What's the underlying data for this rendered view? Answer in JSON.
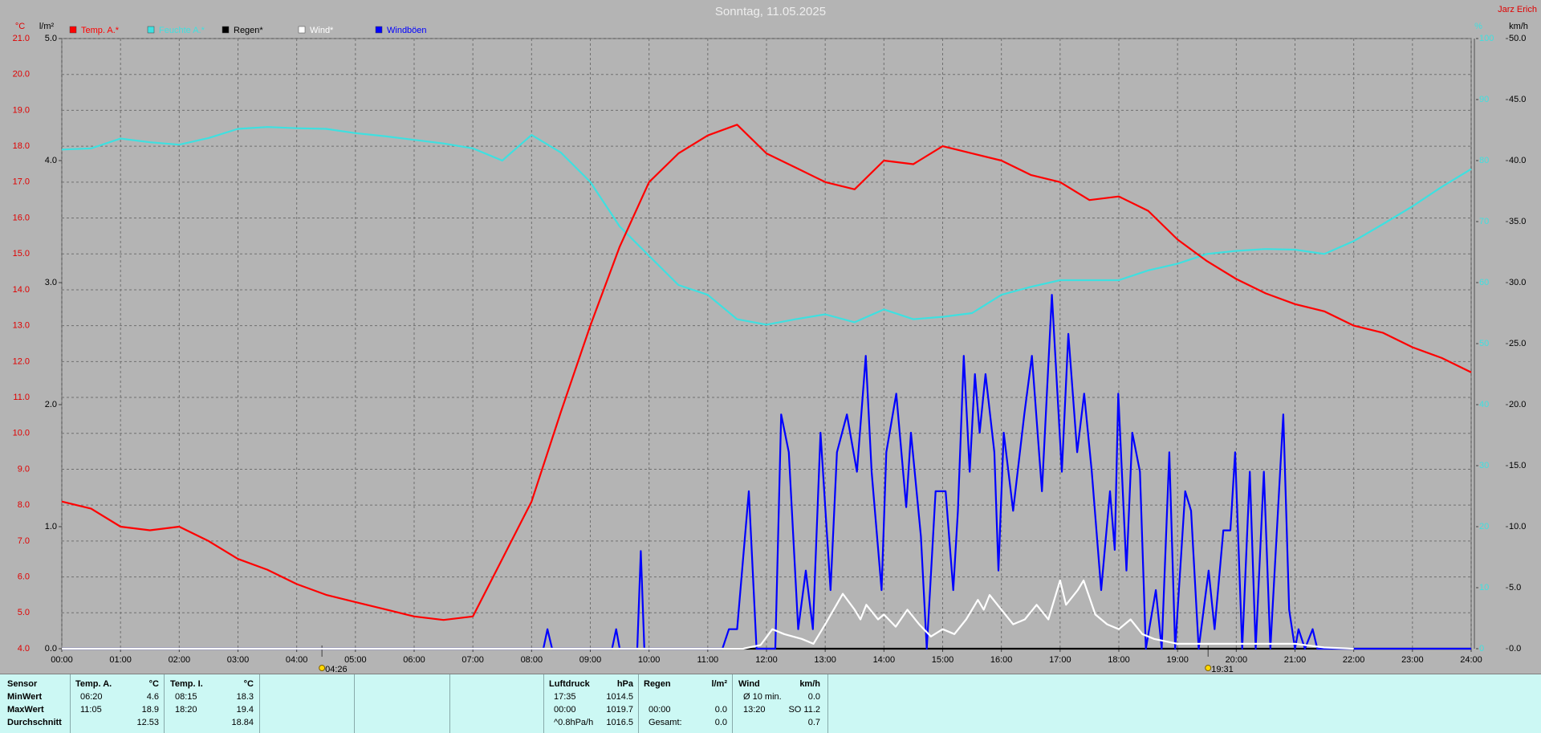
{
  "header": {
    "title": "Sonntag, 11.05.2025",
    "station": "Jarz Erich"
  },
  "chart_data": {
    "type": "line",
    "grid": true,
    "xlim": [
      0,
      24
    ],
    "xticks": [
      {
        "value": 0,
        "label": "00:00"
      },
      {
        "value": 1,
        "label": "01:00"
      },
      {
        "value": 2,
        "label": "02:00"
      },
      {
        "value": 3,
        "label": "03:00"
      },
      {
        "value": 4,
        "label": "04:00"
      },
      {
        "value": 5,
        "label": "05:00"
      },
      {
        "value": 6,
        "label": "06:00"
      },
      {
        "value": 7,
        "label": "07:00"
      },
      {
        "value": 8,
        "label": "08:00"
      },
      {
        "value": 9,
        "label": "09:00"
      },
      {
        "value": 10,
        "label": "10:00"
      },
      {
        "value": 11,
        "label": "11:00"
      },
      {
        "value": 12,
        "label": "12:00"
      },
      {
        "value": 13,
        "label": "13:00"
      },
      {
        "value": 14,
        "label": "14:00"
      },
      {
        "value": 15,
        "label": "15:00"
      },
      {
        "value": 16,
        "label": "16:00"
      },
      {
        "value": 17,
        "label": "17:00"
      },
      {
        "value": 18,
        "label": "18:00"
      },
      {
        "value": 19,
        "label": "19:00"
      },
      {
        "value": 20,
        "label": "20:00"
      },
      {
        "value": 21,
        "label": "21:00"
      },
      {
        "value": 22,
        "label": "22:00"
      },
      {
        "value": 23,
        "label": "23:00"
      },
      {
        "value": 24,
        "label": "24:00"
      }
    ],
    "y_unit": "°C",
    "ylim": [
      4,
      21
    ],
    "yticks": [
      {
        "value": 4,
        "label": "4.0"
      },
      {
        "value": 5,
        "label": "5.0"
      },
      {
        "value": 6,
        "label": "6.0"
      },
      {
        "value": 7,
        "label": "7.0"
      },
      {
        "value": 8,
        "label": "8.0"
      },
      {
        "value": 9,
        "label": "9.0"
      },
      {
        "value": 10,
        "label": "10.0"
      },
      {
        "value": 11,
        "label": "11.0"
      },
      {
        "value": 12,
        "label": "12.0"
      },
      {
        "value": 13,
        "label": "13.0"
      },
      {
        "value": 14,
        "label": "14.0"
      },
      {
        "value": 15,
        "label": "15.0"
      },
      {
        "value": 16,
        "label": "16.0"
      },
      {
        "value": 17,
        "label": "17.0"
      },
      {
        "value": 18,
        "label": "18.0"
      },
      {
        "value": 19,
        "label": "19.0"
      },
      {
        "value": 20,
        "label": "20.0"
      },
      {
        "value": 21,
        "label": "21.0"
      }
    ],
    "y2_unit": "l/m²",
    "y2lim": [
      0,
      5
    ],
    "y2ticks": [
      {
        "value": 0,
        "label": "0.0"
      },
      {
        "value": 1,
        "label": "1.0"
      },
      {
        "value": 2,
        "label": "2.0"
      },
      {
        "value": 3,
        "label": "3.0"
      },
      {
        "value": 4,
        "label": "4.0"
      },
      {
        "value": 5,
        "label": "5.0"
      }
    ],
    "y3_unit": "%",
    "y3lim": [
      0,
      100
    ],
    "y3ticks": [
      0,
      10,
      20,
      30,
      40,
      50,
      60,
      70,
      80,
      90,
      100
    ],
    "y4_unit": "km/h",
    "y4lim": [
      0,
      50
    ],
    "y4ticks": [
      {
        "value": 0,
        "label": "0.0"
      },
      {
        "value": 5,
        "label": "5.0"
      },
      {
        "value": 10,
        "label": "10.0"
      },
      {
        "value": 15,
        "label": "15.0"
      },
      {
        "value": 20,
        "label": "20.0"
      },
      {
        "value": 25,
        "label": "25.0"
      },
      {
        "value": 30,
        "label": "30.0"
      },
      {
        "value": 35,
        "label": "35.0"
      },
      {
        "value": 40,
        "label": "40.0"
      },
      {
        "value": 45,
        "label": "45.0"
      },
      {
        "value": 50,
        "label": "50.0"
      }
    ],
    "sun_events": [
      {
        "x": 4.43,
        "label": "04:26"
      },
      {
        "x": 19.52,
        "label": "19:31"
      }
    ],
    "series": [
      {
        "name": "Temp. A.*",
        "color": "#ff0000",
        "axis": "y",
        "x": [
          0,
          0.5,
          1,
          1.5,
          2,
          2.5,
          3,
          3.5,
          4,
          4.5,
          5,
          5.5,
          6,
          6.5,
          7,
          7.5,
          8,
          8.5,
          9,
          9.5,
          10,
          10.5,
          11,
          11.5,
          12,
          12.5,
          13,
          13.5,
          14,
          14.5,
          15,
          15.5,
          16,
          16.5,
          17,
          17.5,
          18,
          18.5,
          19,
          19.5,
          20,
          20.5,
          21,
          21.5,
          22,
          22.5,
          23,
          23.5,
          24
        ],
        "values": [
          8.1,
          7.9,
          7.4,
          7.3,
          7.4,
          7.0,
          6.5,
          6.2,
          5.8,
          5.5,
          5.3,
          5.1,
          4.9,
          4.8,
          4.9,
          6.5,
          8.1,
          10.6,
          13.0,
          15.2,
          17.0,
          17.8,
          18.3,
          18.6,
          17.8,
          17.4,
          17.0,
          16.8,
          17.6,
          17.5,
          18.0,
          17.8,
          17.6,
          17.2,
          17.0,
          16.5,
          16.6,
          16.2,
          15.4,
          14.8,
          14.3,
          13.9,
          13.6,
          13.4,
          13.0,
          12.8,
          12.4,
          12.1,
          11.7
        ]
      },
      {
        "name": "Feuchte A.*",
        "color": "#3ee0e0",
        "axis": "y3",
        "x": [
          0,
          0.5,
          1,
          1.5,
          2,
          2.5,
          3,
          3.5,
          4,
          4.5,
          5,
          5.5,
          6,
          6.5,
          7,
          7.5,
          8,
          8.5,
          9,
          9.5,
          10,
          10.5,
          11,
          11.5,
          12,
          12.5,
          13,
          13.5,
          14,
          14.5,
          15,
          15.5,
          16,
          16.5,
          17,
          17.5,
          18,
          18.5,
          19,
          19.5,
          20,
          20.5,
          21,
          21.5,
          22,
          22.5,
          23,
          23.5,
          24
        ],
        "values": [
          81.8,
          82,
          83.6,
          83,
          82.6,
          83.7,
          85.2,
          85.5,
          85.3,
          85.2,
          84.5,
          84,
          83.4,
          82.8,
          82,
          80,
          84.2,
          81.3,
          76.5,
          69.2,
          64.4,
          59.6,
          58,
          54,
          53.1,
          54,
          54.8,
          53.5,
          55.6,
          54,
          54.4,
          55,
          58,
          59.3,
          60.4,
          60.4,
          60.4,
          62,
          63.1,
          64.7,
          65.2,
          65.5,
          65.4,
          64.7,
          66.8,
          69.6,
          72.5,
          75.7,
          78.6
        ]
      },
      {
        "name": "Regen*",
        "color": "#000000",
        "axis": "y2",
        "x": [
          0,
          24
        ],
        "values": [
          0,
          0
        ]
      },
      {
        "name": "Wind*",
        "color": "#ffffff",
        "axis": "y4",
        "x": [
          0,
          11.6,
          11.9,
          12.1,
          12.3,
          12.6,
          12.8,
          13.0,
          13.3,
          13.5,
          13.6,
          13.7,
          13.9,
          14.0,
          14.2,
          14.4,
          14.6,
          14.8,
          15.0,
          15.2,
          15.4,
          15.6,
          15.7,
          15.8,
          16.0,
          16.2,
          16.4,
          16.6,
          16.8,
          17.0,
          17.1,
          17.3,
          17.4,
          17.6,
          17.8,
          18.0,
          18.2,
          18.4,
          18.6,
          19.0,
          19.5,
          20.0,
          20.5,
          21.0,
          21.5,
          22.0
        ],
        "values": [
          0,
          0,
          0.3,
          1.6,
          1.2,
          0.8,
          0.4,
          2.0,
          4.5,
          3.2,
          2.4,
          3.6,
          2.4,
          2.8,
          1.8,
          3.2,
          2.0,
          1.0,
          1.6,
          1.2,
          2.4,
          4.0,
          3.2,
          4.4,
          3.2,
          2.0,
          2.4,
          3.6,
          2.4,
          5.6,
          3.6,
          4.8,
          5.6,
          2.8,
          2.0,
          1.6,
          2.4,
          1.2,
          0.8,
          0.4,
          0.4,
          0.4,
          0.4,
          0.4,
          0.1,
          0
        ]
      },
      {
        "name": "Windböen",
        "color": "#0000ff",
        "axis": "y4",
        "x": [
          0,
          8.2,
          8.27,
          8.35,
          9.37,
          9.44,
          9.5,
          9.8,
          9.86,
          9.92,
          11.25,
          11.36,
          11.5,
          11.7,
          11.83,
          12.15,
          12.25,
          12.38,
          12.54,
          12.67,
          12.79,
          12.92,
          13.09,
          13.2,
          13.37,
          13.54,
          13.69,
          13.79,
          13.96,
          14.04,
          14.21,
          14.38,
          14.46,
          14.63,
          14.73,
          14.88,
          15.05,
          15.18,
          15.26,
          15.36,
          15.46,
          15.55,
          15.63,
          15.73,
          15.88,
          15.95,
          16.04,
          16.2,
          16.39,
          16.52,
          16.69,
          16.86,
          17.03,
          17.14,
          17.29,
          17.41,
          17.54,
          17.7,
          17.85,
          17.93,
          17.99,
          18.13,
          18.23,
          18.36,
          18.46,
          18.63,
          18.73,
          18.86,
          18.96,
          19.13,
          19.23,
          19.36,
          19.53,
          19.63,
          19.78,
          19.9,
          19.98,
          20.1,
          20.23,
          20.33,
          20.47,
          20.58,
          20.8,
          20.9,
          21.0,
          21.06,
          21.17,
          21.3,
          21.38,
          24
        ],
        "values": [
          0,
          0,
          1.6,
          0,
          0,
          1.6,
          0,
          0,
          8.0,
          0,
          0,
          1.6,
          1.6,
          12.9,
          0,
          0,
          19.2,
          16.1,
          1.6,
          6.4,
          1.6,
          17.7,
          4.8,
          16.1,
          19.2,
          14.5,
          24.0,
          14.5,
          4.8,
          16.1,
          20.9,
          11.6,
          17.7,
          9.2,
          0,
          12.9,
          12.9,
          4.8,
          11.3,
          24.0,
          14.5,
          22.5,
          17.7,
          22.5,
          16.1,
          6.4,
          17.7,
          11.3,
          19.2,
          24.0,
          12.9,
          29.0,
          14.5,
          25.8,
          16.1,
          20.9,
          14.5,
          4.8,
          12.9,
          8.1,
          20.9,
          6.4,
          17.7,
          14.5,
          0,
          4.8,
          0,
          16.1,
          0,
          12.9,
          11.3,
          0,
          6.4,
          1.6,
          9.7,
          9.7,
          16.1,
          0,
          14.5,
          0,
          14.5,
          0,
          19.2,
          3.2,
          0,
          1.6,
          0,
          1.6,
          0,
          0
        ]
      }
    ]
  },
  "stats": {
    "row_labels": [
      "Sensor",
      "MinWert",
      "MaxWert",
      "Durchschnitt"
    ],
    "groups": [
      {
        "name": "Temp. A.",
        "unit": "°C",
        "rows": [
          [
            "06:20",
            "4.6"
          ],
          [
            "11:05",
            "18.9"
          ],
          [
            null,
            "12.53"
          ]
        ]
      },
      {
        "name": "Temp. I.",
        "unit": "°C",
        "rows": [
          [
            "08:15",
            "18.3"
          ],
          [
            "18:20",
            "19.4"
          ],
          [
            null,
            "18.84"
          ]
        ]
      },
      {
        "name": "Luftdruck",
        "unit": "hPa",
        "rows": [
          [
            "17:35",
            "1014.5"
          ],
          [
            "00:00",
            "1019.7"
          ],
          [
            "^0.8hPa/h",
            "1016.5"
          ]
        ]
      },
      {
        "name": "Regen",
        "unit": "l/m²",
        "rows": [
          [
            null,
            null
          ],
          [
            "00:00",
            "0.0"
          ],
          [
            "Gesamt:",
            "0.0"
          ]
        ]
      },
      {
        "name": "Wind",
        "unit": "km/h",
        "rows": [
          [
            "Ø 10 min.",
            "0.0"
          ],
          [
            "13:20",
            "SO 11.2"
          ],
          [
            null,
            "0.7"
          ]
        ]
      }
    ]
  }
}
